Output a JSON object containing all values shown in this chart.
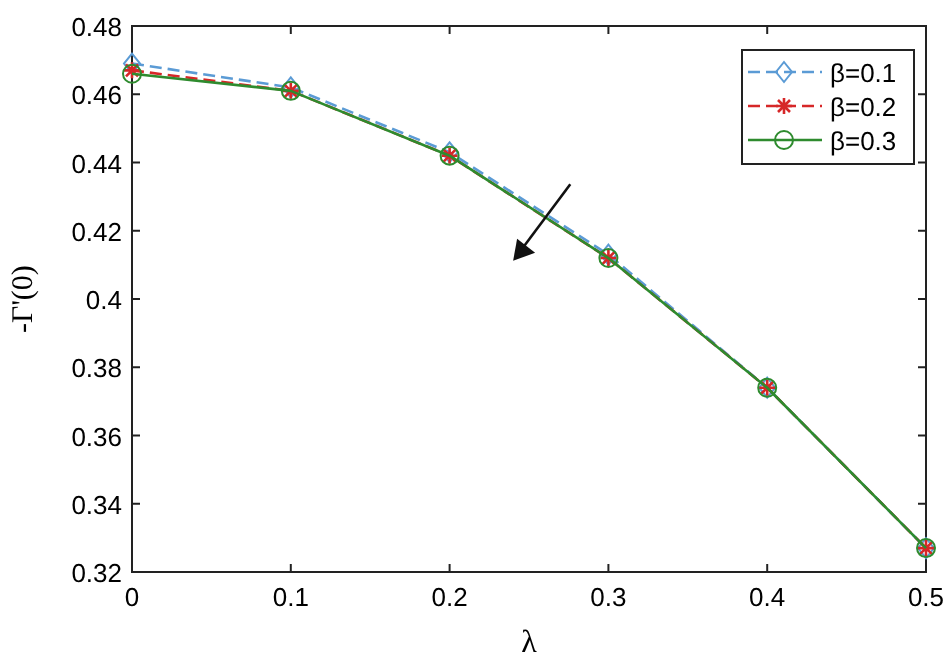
{
  "chart_data": {
    "type": "line",
    "xlabel": "λ",
    "ylabel": "-Γ'(0)",
    "x": [
      0,
      0.1,
      0.2,
      0.3,
      0.4,
      0.5
    ],
    "series": [
      {
        "name": "β=0.1",
        "color": "#5b9bd5",
        "marker": "diamond",
        "line_style": "dashed",
        "values": [
          0.469,
          0.462,
          0.443,
          0.413,
          0.374,
          0.327
        ]
      },
      {
        "name": "β=0.2",
        "color": "#d62728",
        "marker": "cross",
        "line_style": "dashed",
        "values": [
          0.467,
          0.461,
          0.442,
          0.412,
          0.374,
          0.327
        ]
      },
      {
        "name": "β=0.3",
        "color": "#2e8b2e",
        "marker": "circle",
        "line_style": "solid",
        "values": [
          0.466,
          0.461,
          0.442,
          0.412,
          0.374,
          0.327
        ]
      }
    ],
    "xlim": [
      0,
      0.5
    ],
    "xticks": [
      0,
      0.1,
      0.2,
      0.3,
      0.4,
      0.5
    ],
    "ylim": [
      0.32,
      0.48
    ],
    "yticks": [
      0.32,
      0.34,
      0.36,
      0.38,
      0.4,
      0.42,
      0.44,
      0.46,
      0.48
    ],
    "legend": "top right",
    "grid": false
  }
}
